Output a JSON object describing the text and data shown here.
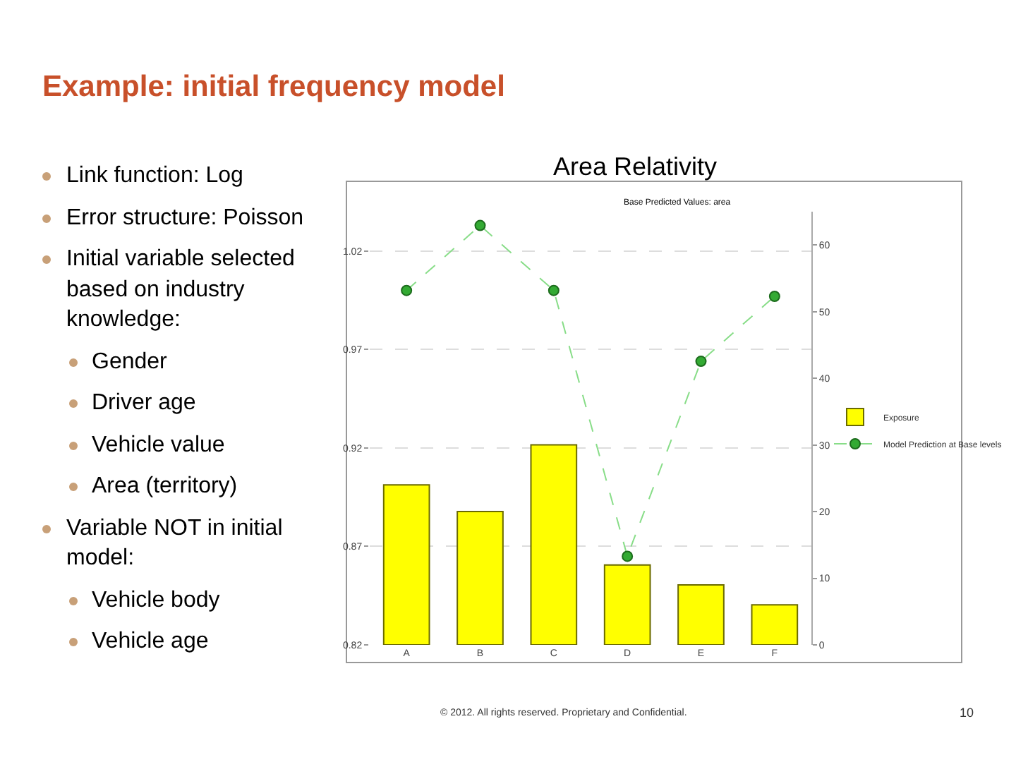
{
  "chart_data": {
    "type": "bar",
    "title": "Example: initial frequency model",
    "subtitle": "Area Relativity",
    "categories": [
      "A",
      "B",
      "C",
      "D",
      "E",
      "F"
    ],
    "series": [
      {
        "name": "Exposure",
        "axis": "y2",
        "color": "#ffff00",
        "values": [
          24,
          20,
          30,
          12,
          9,
          6
        ]
      },
      {
        "name": "Model Prediction at Base levels",
        "type": "line",
        "color": "#33aa33",
        "marker": "circle",
        "line_style": "dashed",
        "values": [
          1.0,
          1.033,
          1.0,
          0.865,
          0.964,
          0.997
        ]
      }
    ],
    "ylim": [
      0.82,
      1.04
    ],
    "yticks": [
      0.82,
      0.87,
      0.92,
      0.97,
      1.02
    ],
    "y2lim": [
      0,
      65
    ],
    "y2ticks": [
      0,
      10,
      20,
      30,
      40,
      50,
      60
    ],
    "grid": "y",
    "legend": "right",
    "annotations": [
      "Base Predicted Values: area",
      "Link function: Log",
      "Error structure: Poisson",
      "Initial variable selected based on industry knowledge:",
      "Gender",
      "Driver age",
      "Vehicle value",
      "Area (territory)",
      "Variable NOT in initial model:",
      "Vehicle body",
      "Vehicle age",
      "© 2012. All rights reserved. Proprietary and Confidential.",
      "10"
    ]
  }
}
